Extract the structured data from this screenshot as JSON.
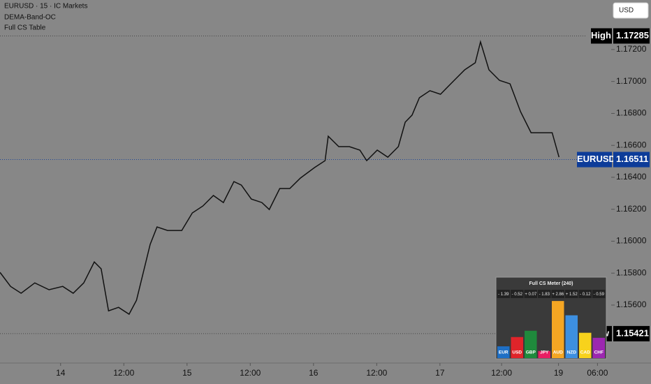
{
  "chart_data": [
    {
      "type": "line",
      "title": "EURUSD · 15 · IC Markets",
      "indicators": [
        "DEMA-Band-OC",
        "Full CS Table"
      ],
      "currency": "USD",
      "x": [
        0,
        2.0,
        4.0,
        6.6,
        9.3,
        11.9,
        13.9,
        15.9,
        17.9,
        19.2,
        20.6,
        22.5,
        24.5,
        25.9,
        27.2,
        28.5,
        29.8,
        31.8,
        34.5,
        36.5,
        38.5,
        40.5,
        42.4,
        44.4,
        45.8,
        47.7,
        49.7,
        51.1,
        53.1,
        55.0,
        57.0,
        59.7,
        61.7,
        62.3,
        64.3,
        66.3,
        68.3,
        69.6,
        71.6,
        73.6,
        75.6,
        76.9,
        78.2,
        79.6,
        81.6,
        83.6,
        86.2,
        88.2,
        90.2,
        91.2,
        92.8,
        94.8,
        96.8,
        98.8,
        100.8,
        102.8,
        104.8,
        106.1
      ],
      "series": [
        {
          "name": "EURUSD",
          "color": "#111111",
          "values": [
            1.15805,
            1.15717,
            1.15674,
            1.15739,
            1.15696,
            1.15717,
            1.15674,
            1.15739,
            1.1587,
            1.15827,
            1.15564,
            1.15586,
            1.15543,
            1.1563,
            1.15805,
            1.1598,
            1.16089,
            1.16067,
            1.16067,
            1.16177,
            1.1622,
            1.16286,
            1.16242,
            1.16373,
            1.16351,
            1.16264,
            1.16242,
            1.16198,
            1.1633,
            1.1633,
            1.16395,
            1.16461,
            1.16504,
            1.16657,
            1.16592,
            1.16592,
            1.1657,
            1.16504,
            1.1657,
            1.16526,
            1.16592,
            1.16745,
            1.16789,
            1.16898,
            1.16942,
            1.1692,
            1.17007,
            1.17073,
            1.17117,
            1.17248,
            1.17073,
            1.17007,
            1.16985,
            1.1681,
            1.16679,
            1.16679,
            1.16679,
            1.16526
          ]
        }
      ],
      "xlim": [
        0,
        116
      ],
      "xticks": [
        {
          "value": 11.5,
          "label": "14"
        },
        {
          "value": 23.5,
          "label": "12:00"
        },
        {
          "value": 35.5,
          "label": "15"
        },
        {
          "value": 47.5,
          "label": "12:00"
        },
        {
          "value": 59.5,
          "label": "16"
        },
        {
          "value": 71.5,
          "label": "12:00"
        },
        {
          "value": 83.5,
          "label": "17"
        },
        {
          "value": 95.2,
          "label": "12:00"
        },
        {
          "value": 106,
          "label": "19"
        },
        {
          "value": 113.4,
          "label": "06:00"
        }
      ],
      "ylim": [
        1.15237,
        1.1751
      ],
      "yticks": [
        {
          "value": 1.156,
          "label": "1.15600"
        },
        {
          "value": 1.158,
          "label": "1.15800"
        },
        {
          "value": 1.16,
          "label": "1.16000"
        },
        {
          "value": 1.162,
          "label": "1.16200"
        },
        {
          "value": 1.164,
          "label": "1.16400"
        },
        {
          "value": 1.166,
          "label": "1.16600"
        },
        {
          "value": 1.168,
          "label": "1.16800"
        },
        {
          "value": 1.17,
          "label": "1.17000"
        },
        {
          "value": 1.172,
          "label": "1.17200"
        }
      ],
      "high": {
        "label": "High",
        "value": 1.17285
      },
      "low": {
        "label": "Low",
        "value": 1.15421
      },
      "last": {
        "label": "EURUSD",
        "value": 1.16511
      }
    },
    {
      "type": "bar",
      "title": "Full CS Meter (240)",
      "categories": [
        "EUR",
        "USD",
        "GBP",
        "JPY",
        "AUD",
        "NZD",
        "CAD",
        "CHF"
      ],
      "values": [
        -1.39,
        -0.52,
        0.07,
        -1.83,
        2.86,
        1.52,
        -0.12,
        -0.59
      ],
      "value_labels": [
        "- 1.39",
        "- 0.52",
        "+ 0.07",
        "- 1.83",
        "+ 2.86",
        "+ 1.52",
        "- 0.12",
        "- 0.59"
      ],
      "colors": [
        "#1e6fc5",
        "#e0242a",
        "#1f8a3c",
        "#e91e63",
        "#f5a623",
        "#3d8fe0",
        "#f7d21c",
        "#9c27b0"
      ],
      "ylim": [
        -2.5,
        3
      ]
    }
  ]
}
